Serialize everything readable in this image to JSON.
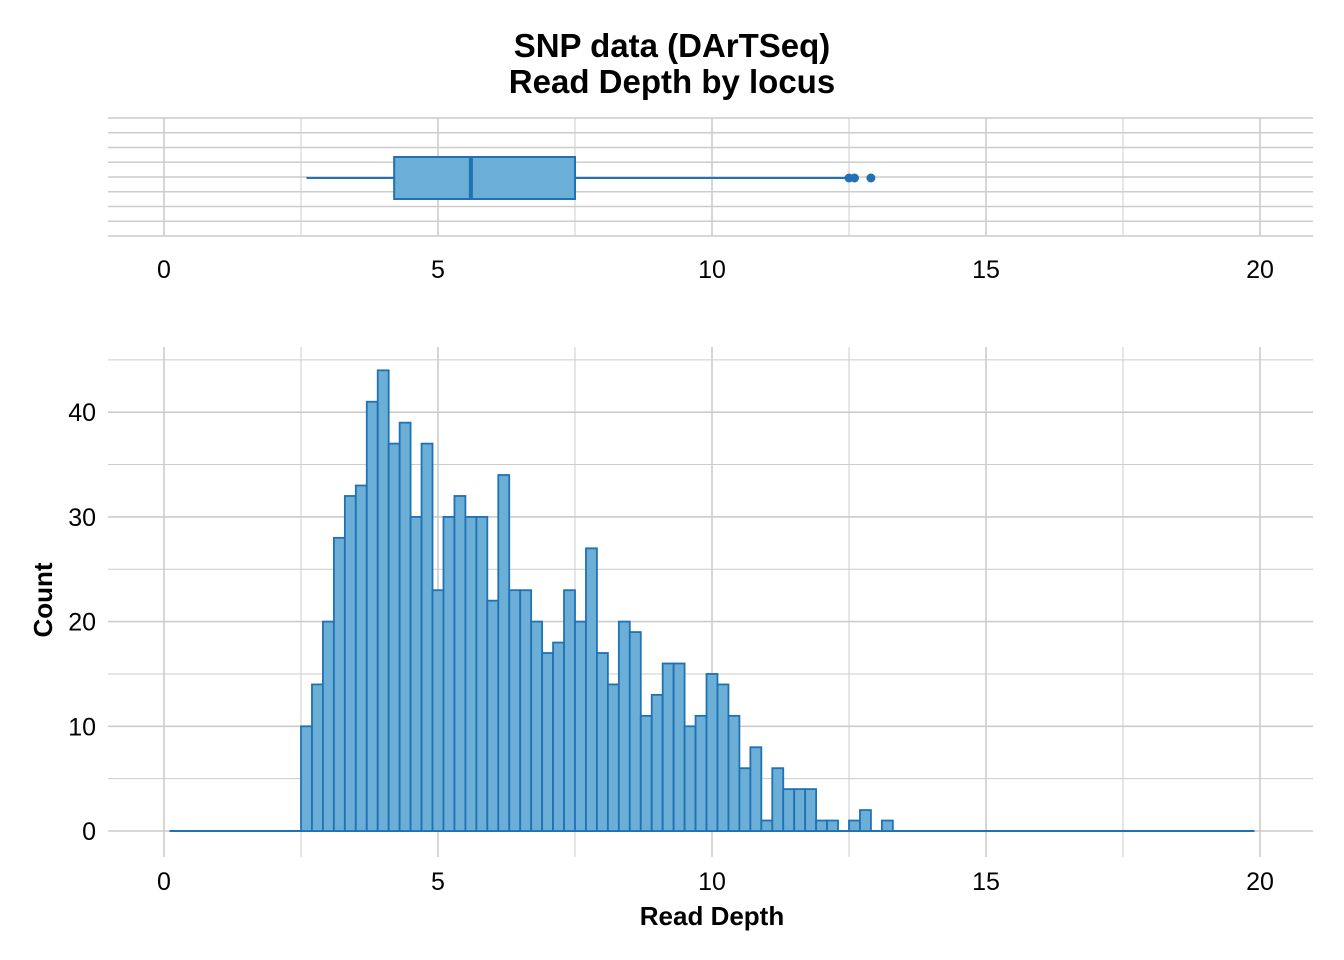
{
  "title_line1": "SNP data (DArTSeq)",
  "title_line2": "Read Depth by locus",
  "colors": {
    "fill": "#6baed6",
    "stroke": "#2171b5",
    "grid": "#cccccc",
    "text": "#000000"
  },
  "chart_data": [
    {
      "type": "box",
      "name": "boxplot",
      "xlim": [
        0,
        20
      ],
      "xticks": [
        "0",
        "5",
        "10",
        "15",
        "20"
      ],
      "whisker_low": 2.6,
      "q1": 4.2,
      "median": 5.6,
      "q3": 7.5,
      "whisker_high": 12.5,
      "outliers": [
        12.5,
        12.6,
        12.9
      ]
    },
    {
      "type": "bar",
      "name": "histogram",
      "xlabel": "Read Depth",
      "ylabel": "Count",
      "xlim": [
        0,
        20
      ],
      "ylim": [
        0,
        44
      ],
      "xticks": [
        "0",
        "5",
        "10",
        "15",
        "20"
      ],
      "yticks": [
        "0",
        "10",
        "20",
        "30",
        "40"
      ],
      "bin_width": 0.2,
      "first_bin_start": 2.5,
      "range_start": 0.1,
      "range_end": 19.9,
      "values": [
        10,
        14,
        20,
        28,
        32,
        33,
        41,
        44,
        37,
        39,
        30,
        37,
        23,
        30,
        32,
        30,
        30,
        22,
        34,
        23,
        23,
        20,
        17,
        18,
        23,
        20,
        27,
        17,
        14,
        20,
        19,
        11,
        13,
        16,
        16,
        10,
        11,
        15,
        14,
        11,
        6,
        8,
        1,
        6,
        4,
        4,
        4,
        1,
        1,
        0,
        1,
        2,
        0,
        1
      ]
    }
  ]
}
